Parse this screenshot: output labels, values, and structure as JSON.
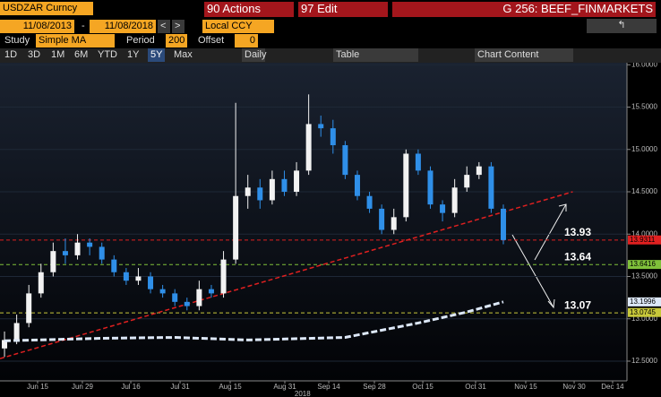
{
  "toolbar": {
    "security": "USDZAR Curncy",
    "actions": "90 Actions",
    "edit": "97 Edit",
    "page": "G 256: BEEF_FINMARKETS",
    "start_date": "11/08/2013",
    "dash": "-",
    "end_date": "11/08/2018",
    "currency": "Local CCY",
    "study_label": "Study",
    "study": "Simple MA",
    "period_label": "Period",
    "period": "200",
    "offset_label": "Offset",
    "offset": "0",
    "ranges": [
      "1D",
      "3D",
      "1M",
      "6M",
      "YTD",
      "1Y",
      "5Y",
      "Max"
    ],
    "selected_range": 6,
    "frequency": "Daily",
    "table": "Table",
    "chart_content": "Chart Content"
  },
  "chart_data": {
    "type": "candlestick",
    "open": [
      12.65,
      12.75,
      12.95,
      13.3,
      13.55,
      13.8,
      13.75,
      13.9,
      13.85,
      13.7,
      13.55,
      13.45,
      13.5,
      13.35,
      13.3,
      13.2,
      13.15,
      13.35,
      13.3,
      13.7,
      14.45,
      14.55,
      14.4,
      14.65,
      14.5,
      14.75,
      15.3,
      15.25,
      15.05,
      14.7,
      14.45,
      14.3,
      14.05,
      14.2,
      14.95,
      14.75,
      14.35,
      14.25,
      14.55,
      14.7,
      14.8,
      14.3
    ],
    "high": [
      12.85,
      13.05,
      13.4,
      13.65,
      13.9,
      13.95,
      14.0,
      13.95,
      13.9,
      13.75,
      13.6,
      13.6,
      13.55,
      13.4,
      13.35,
      13.25,
      13.45,
      13.4,
      13.8,
      15.55,
      14.7,
      14.65,
      14.75,
      14.75,
      14.85,
      15.65,
      15.4,
      15.35,
      15.1,
      14.75,
      14.5,
      14.35,
      14.3,
      15.0,
      15.0,
      14.8,
      14.4,
      14.65,
      14.8,
      14.85,
      14.85,
      14.35
    ],
    "low": [
      12.55,
      12.7,
      12.9,
      13.25,
      13.5,
      13.65,
      13.7,
      13.75,
      13.65,
      13.5,
      13.4,
      13.4,
      13.3,
      13.25,
      13.15,
      13.1,
      13.1,
      13.25,
      13.25,
      13.65,
      14.3,
      14.3,
      14.35,
      14.45,
      14.45,
      14.7,
      15.15,
      14.95,
      14.65,
      14.4,
      14.25,
      14.0,
      14.0,
      14.15,
      14.7,
      14.3,
      14.15,
      14.2,
      14.5,
      14.65,
      14.25,
      13.88
    ],
    "close": [
      12.75,
      12.95,
      13.3,
      13.55,
      13.8,
      13.75,
      13.9,
      13.85,
      13.7,
      13.55,
      13.45,
      13.5,
      13.35,
      13.3,
      13.2,
      13.15,
      13.35,
      13.3,
      13.7,
      14.45,
      14.55,
      14.4,
      14.65,
      14.5,
      14.75,
      15.3,
      15.25,
      15.05,
      14.7,
      14.45,
      14.3,
      14.05,
      14.2,
      14.95,
      14.75,
      14.35,
      14.25,
      14.55,
      14.7,
      14.8,
      14.3,
      13.93
    ],
    "up_color": "#f2f2f2",
    "down_color": "#2f8fe8",
    "moving_average": {
      "x": [
        0,
        8,
        14,
        20,
        28,
        34,
        38,
        41
      ],
      "values": [
        12.74,
        12.77,
        12.78,
        12.75,
        12.78,
        12.95,
        13.08,
        13.2
      ],
      "color": "#dde8f8"
    },
    "trendline": {
      "x": [
        -0.37,
        46.7
      ],
      "values": [
        12.53,
        14.5
      ],
      "color": "#e02020"
    },
    "levels": [
      {
        "value": 13.93,
        "color": "#e02020"
      },
      {
        "value": 13.64,
        "color": "#7fc03a"
      },
      {
        "value": 13.07,
        "color": "#c8c83a"
      }
    ],
    "axis_tags": [
      {
        "value": 13.9311,
        "color": "#e02020"
      },
      {
        "value": 13.6416,
        "color": "#7fc03a"
      },
      {
        "value": 13.1996,
        "color": "#dde8f8"
      },
      {
        "value": 13.0745,
        "color": "#c8c83a"
      }
    ],
    "xlim": [
      -0.37,
      51.16
    ],
    "xticks": [
      {
        "value": 2.72,
        "label": "Jun 15"
      },
      {
        "value": 6.4,
        "label": "Jun 29"
      },
      {
        "value": 10.38,
        "label": "Jul 16"
      },
      {
        "value": 14.43,
        "label": "Jul 31"
      },
      {
        "value": 18.55,
        "label": "Aug 15"
      },
      {
        "value": 23.04,
        "label": "Aug 31"
      },
      {
        "value": 26.65,
        "label": "Sep 14"
      },
      {
        "value": 30.4,
        "label": "Sep 28"
      },
      {
        "value": 34.38,
        "label": "Oct 15"
      },
      {
        "value": 38.72,
        "label": "Oct 31"
      },
      {
        "value": 42.84,
        "label": "Nov 15"
      },
      {
        "value": 46.82,
        "label": "Nov 30"
      },
      {
        "value": 49.98,
        "label": "Dec 14"
      }
    ],
    "year_label": "2018",
    "ylim": [
      12.267,
      16.024
    ],
    "yticks": [
      {
        "value": 12.5,
        "label": "12.5000"
      },
      {
        "value": 13,
        "label": "13.0000"
      },
      {
        "value": 13.5,
        "label": "13.5000"
      },
      {
        "value": 14,
        "label": "14.0000"
      },
      {
        "value": 14.5,
        "label": "14.5000"
      },
      {
        "value": 15,
        "label": "15.0000"
      },
      {
        "value": 15.5,
        "label": "15.5000"
      },
      {
        "value": 16,
        "label": "16.0000"
      }
    ],
    "grid": true
  }
}
